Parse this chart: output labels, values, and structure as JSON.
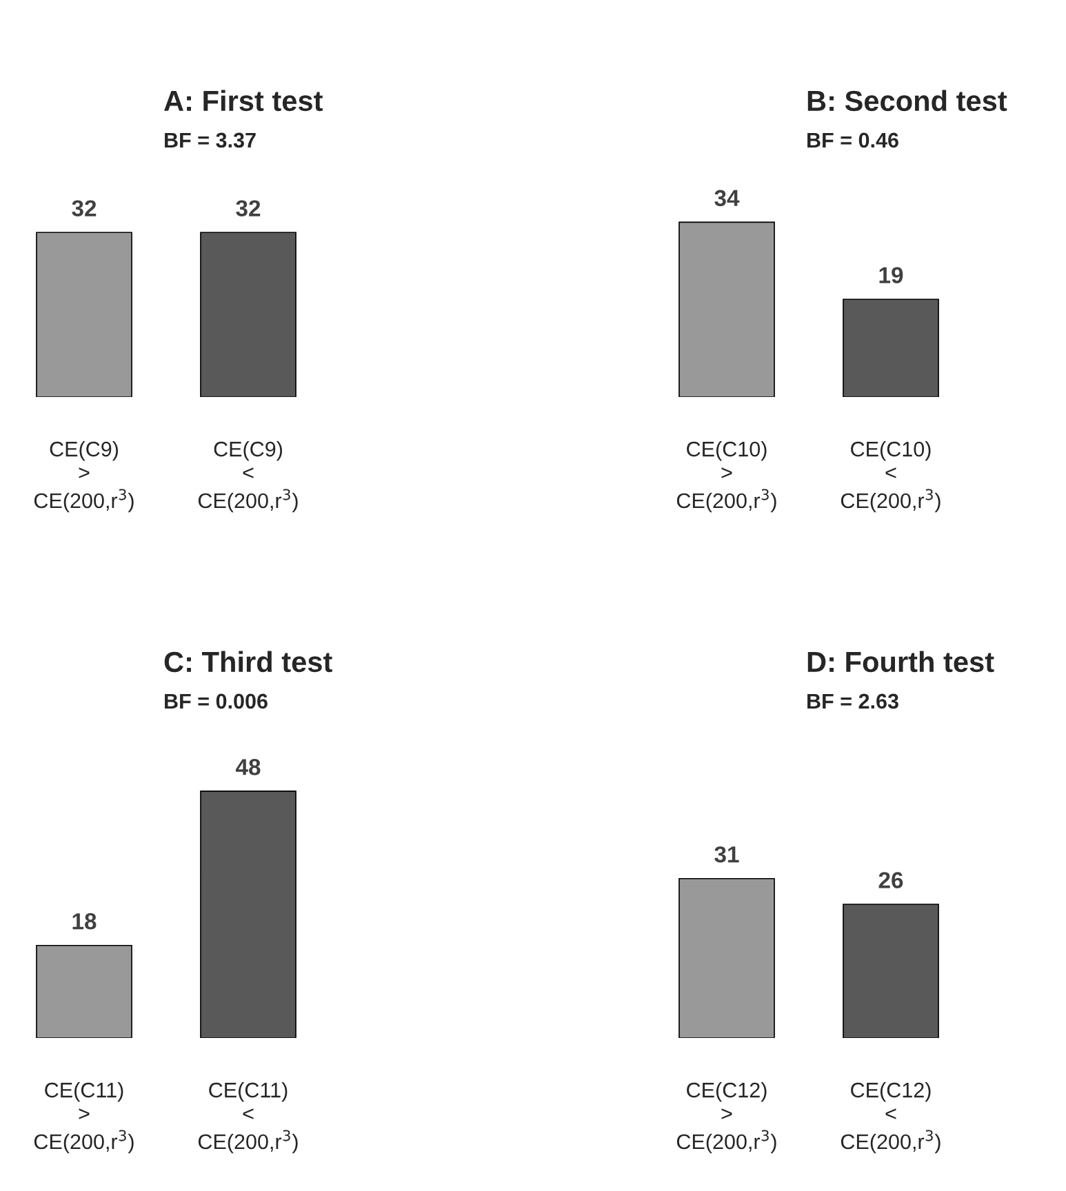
{
  "chart_data": [
    {
      "type": "bar",
      "title": "A: First test",
      "subtitle": "BF = 3.37",
      "categories": [
        "CE(C9)\n>\nCE(200,r$^{3}$)",
        "CE(C9)\n<\nCE(200,r$^{3}$)"
      ],
      "values": [
        32,
        32
      ],
      "colors": [
        "#999999",
        "#595959"
      ],
      "data_labels": true
    },
    {
      "type": "bar",
      "title": "B: Second test",
      "subtitle": "BF = 0.46",
      "categories": [
        "CE(C10)\n>\nCE(200,r$^{3}$)",
        "CE(C10)\n<\nCE(200,r$^{3}$)"
      ],
      "values": [
        34,
        19
      ],
      "colors": [
        "#999999",
        "#595959"
      ],
      "data_labels": true
    },
    {
      "type": "bar",
      "title": "C: Third test",
      "subtitle": "BF = 0.006",
      "categories": [
        "CE(C11)\n>\nCE(200,r$^{3}$)",
        "CE(C11)\n<\nCE(200,r$^{3}$)"
      ],
      "values": [
        18,
        48
      ],
      "colors": [
        "#999999",
        "#595959"
      ],
      "data_labels": true
    },
    {
      "type": "bar",
      "title": "D: Fourth test",
      "subtitle": "BF = 2.63",
      "categories": [
        "CE(C12)\n>\nCE(200,r$^{3}$)",
        "CE(C12)\n<\nCE(200,r$^{3}$)"
      ],
      "values": [
        31,
        26
      ],
      "colors": [
        "#999999",
        "#595959"
      ],
      "data_labels": true
    }
  ]
}
